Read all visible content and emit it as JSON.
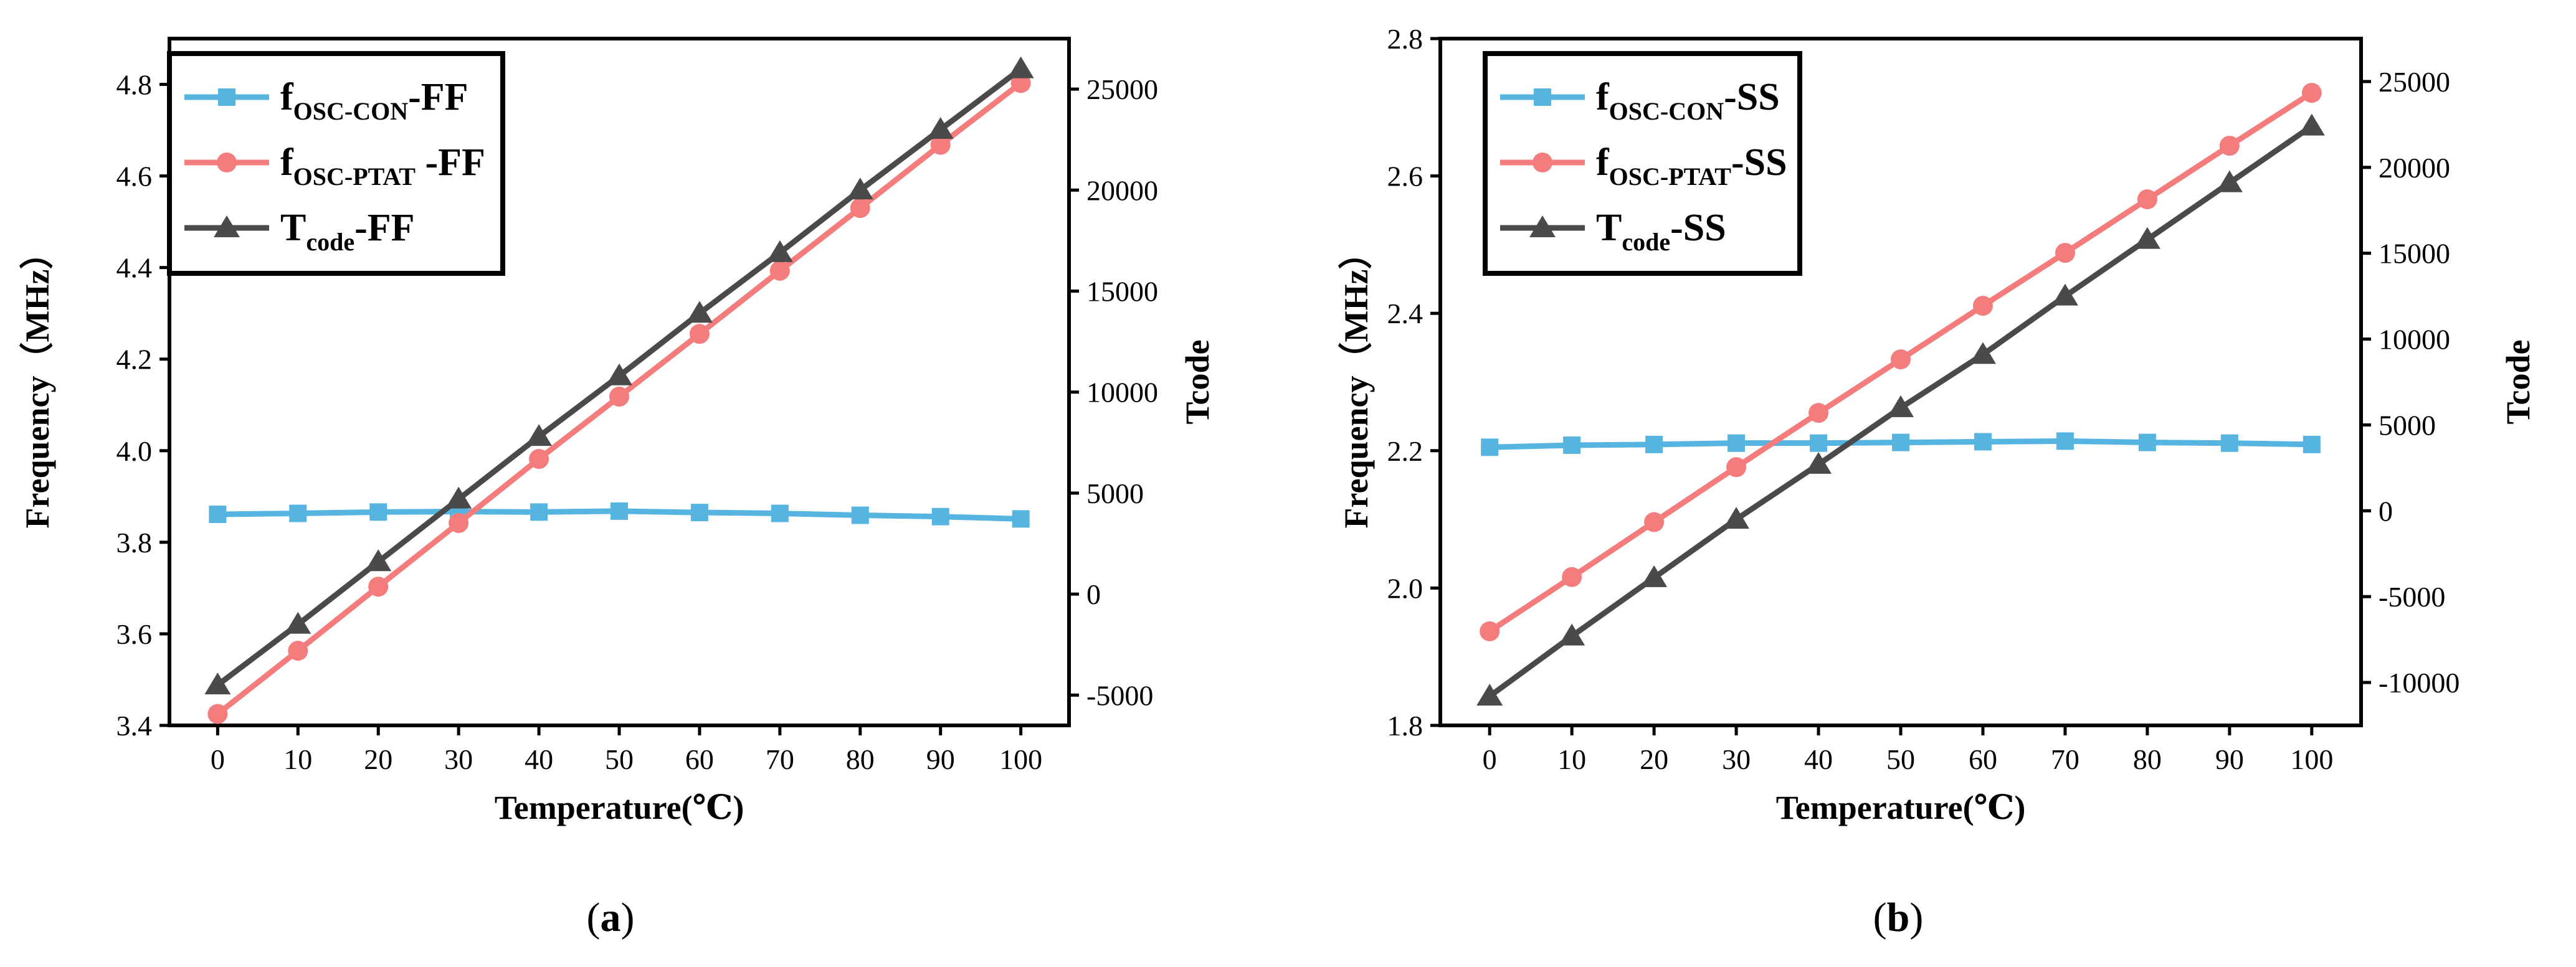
{
  "chart_data": [
    {
      "type": "line",
      "panel_label": "a",
      "xlabel": "Temperature(℃)",
      "ylabel_left": "Frequency（MHz）",
      "ylabel_right": "Tcode",
      "x": [
        0,
        10,
        20,
        30,
        40,
        50,
        60,
        70,
        80,
        90,
        100
      ],
      "x_ticks": [
        "0",
        "10",
        "20",
        "30",
        "40",
        "50",
        "60",
        "70",
        "80",
        "90",
        "100"
      ],
      "ylim_left": [
        3.4,
        4.9
      ],
      "yticks_left": [
        "3.4",
        "3.6",
        "3.8",
        "4.0",
        "4.2",
        "4.4",
        "4.6",
        "4.8"
      ],
      "ylim_right": [
        -6500,
        27500
      ],
      "yticks_right": [
        "-5000",
        "0",
        "5000",
        "10000",
        "15000",
        "20000",
        "25000"
      ],
      "legend_position": "top-left",
      "series": [
        {
          "name": "fOSC-CON-FF",
          "legend_main": "f",
          "legend_sub": "OSC-CON",
          "legend_tail": "-FF",
          "axis": "left",
          "marker": "square",
          "color": "#56b4e0",
          "values": [
            3.861,
            3.863,
            3.866,
            3.867,
            3.866,
            3.868,
            3.865,
            3.863,
            3.859,
            3.856,
            3.851
          ]
        },
        {
          "name": "fOSC-PTAT-FF",
          "legend_main": "f",
          "legend_sub": "OSC-PTAT",
          "legend_tail": " -FF",
          "axis": "left",
          "marker": "circle",
          "color": "#f47c7c",
          "values": [
            3.425,
            3.563,
            3.703,
            3.842,
            3.982,
            4.118,
            4.255,
            4.393,
            4.53,
            4.668,
            4.803
          ]
        },
        {
          "name": "Tcode-FF",
          "legend_main": "T",
          "legend_sub": "code",
          "legend_tail": "-FF",
          "axis": "right",
          "marker": "triangle",
          "color": "#4a4a4a",
          "values": [
            -4500,
            -1500,
            1600,
            4700,
            7800,
            10800,
            13900,
            16900,
            20000,
            23000,
            26000
          ]
        }
      ]
    },
    {
      "type": "line",
      "panel_label": "b",
      "xlabel": "Temperature(℃)",
      "ylabel_left": "Frequency（MHz）",
      "ylabel_right": "Tcode",
      "x": [
        0,
        10,
        20,
        30,
        40,
        50,
        60,
        70,
        80,
        90,
        100
      ],
      "x_ticks": [
        "0",
        "10",
        "20",
        "30",
        "40",
        "50",
        "60",
        "70",
        "80",
        "90",
        "100"
      ],
      "ylim_left": [
        1.8,
        2.8
      ],
      "yticks_left": [
        "1.8",
        "2.0",
        "2.2",
        "2.4",
        "2.6",
        "2.8"
      ],
      "ylim_right": [
        -12500,
        27500
      ],
      "yticks_right": [
        "-10000",
        "-5000",
        "0",
        "5000",
        "10000",
        "15000",
        "20000",
        "25000"
      ],
      "legend_position": "top-left",
      "series": [
        {
          "name": "fOSC-CON-SS",
          "legend_main": "f",
          "legend_sub": "OSC-CON",
          "legend_tail": "-SS",
          "axis": "left",
          "marker": "square",
          "color": "#56b4e0",
          "values": [
            2.205,
            2.208,
            2.209,
            2.211,
            2.211,
            2.212,
            2.213,
            2.214,
            2.212,
            2.211,
            2.209
          ]
        },
        {
          "name": "fOSC-PTAT-SS",
          "legend_main": "f",
          "legend_sub": "OSC-PTAT",
          "legend_tail": "-SS",
          "axis": "left",
          "marker": "circle",
          "color": "#f47c7c",
          "values": [
            1.937,
            2.016,
            2.096,
            2.176,
            2.255,
            2.333,
            2.411,
            2.488,
            2.566,
            2.644,
            2.721
          ]
        },
        {
          "name": "Tcode-SS",
          "legend_main": "T",
          "legend_sub": "code",
          "legend_tail": "-SS",
          "axis": "right",
          "marker": "triangle",
          "color": "#4a4a4a",
          "values": [
            -10800,
            -7300,
            -3900,
            -500,
            2700,
            6000,
            9100,
            12500,
            15800,
            19100,
            22400
          ]
        }
      ]
    }
  ]
}
